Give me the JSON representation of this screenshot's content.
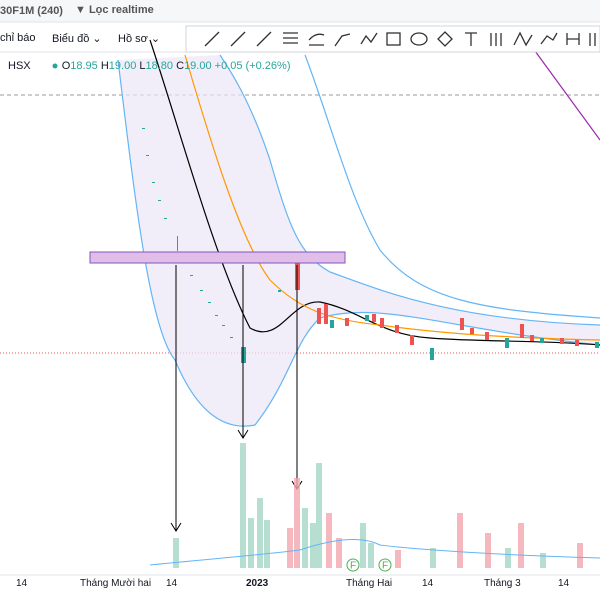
{
  "toolbar": {
    "symbol_interval": "30F1M (240)",
    "filter": "Lọc realtime",
    "buttons": [
      "chỉ báo",
      "Biểu đồ",
      "Hồ sơ"
    ]
  },
  "legend": {
    "exchange": "HSX",
    "open_label": "O",
    "open": "18.95",
    "high_label": "H",
    "high": "19.00",
    "low_label": "L",
    "low": "18.80",
    "close_label": "C",
    "close": "19.00",
    "change": "+0.05 (+0.26%)"
  },
  "x_axis": [
    "14",
    "Tháng Mười hai",
    "14",
    "2023",
    "Tháng Hai",
    "14",
    "Tháng 3",
    "14"
  ],
  "event_markers": [
    "F",
    "F"
  ]
}
